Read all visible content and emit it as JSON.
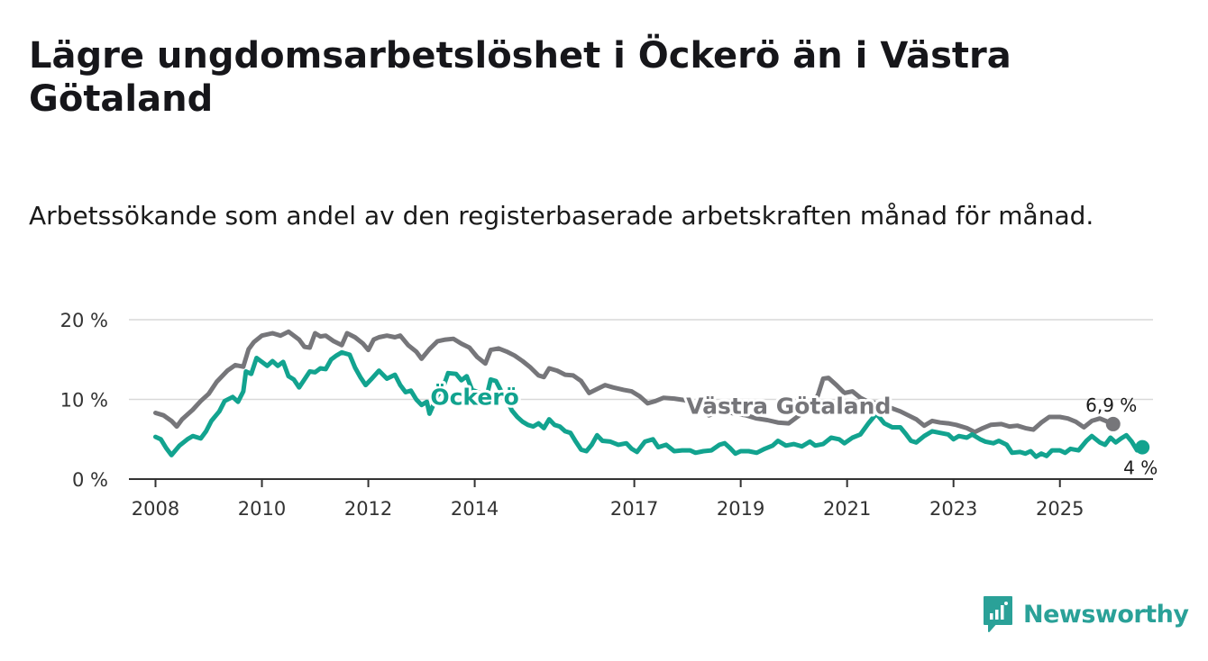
{
  "title": "Lägre ungdomsarbetslöshet i Öckerö än i Västra Götaland",
  "subtitle": "Arbetssökande som andel av den registerbaserade arbetskraften månad för månad.",
  "brand": "Newsworthy",
  "colors": {
    "ockero": "#12a38f",
    "vastra": "#76767a",
    "axis": "#333333",
    "grid": "#d9d9d9"
  },
  "chart_data": {
    "type": "line",
    "x_unit": "year (decimal)",
    "xlim": [
      2007.5,
      2026.75
    ],
    "ylim": [
      0,
      20
    ],
    "yticks": [
      0,
      10,
      20
    ],
    "ytick_labels": [
      "0 %",
      "10 %",
      "20 %"
    ],
    "xticks": [
      2008,
      2010,
      2012,
      2014,
      2017,
      2019,
      2021,
      2023,
      2025
    ],
    "xtick_labels": [
      "2008",
      "2010",
      "2012",
      "2014",
      "2017",
      "2019",
      "2021",
      "2023",
      "2025"
    ],
    "grid": true,
    "series": [
      {
        "name": "Västra Götaland",
        "color": "#76767a",
        "end_label": "6,9 %",
        "points": [
          [
            2008,
            8.3
          ],
          [
            2008.15,
            8
          ],
          [
            2008.3,
            7.3
          ],
          [
            2008.4,
            6.6
          ],
          [
            2008.5,
            7.5
          ],
          [
            2008.7,
            8.7
          ],
          [
            2008.85,
            9.8
          ],
          [
            2009,
            10.7
          ],
          [
            2009.15,
            12.2
          ],
          [
            2009.35,
            13.6
          ],
          [
            2009.5,
            14.3
          ],
          [
            2009.65,
            14.1
          ],
          [
            2009.75,
            16.3
          ],
          [
            2009.85,
            17.2
          ],
          [
            2010,
            18
          ],
          [
            2010.2,
            18.3
          ],
          [
            2010.35,
            18
          ],
          [
            2010.5,
            18.5
          ],
          [
            2010.7,
            17.5
          ],
          [
            2010.8,
            16.6
          ],
          [
            2010.9,
            16.5
          ],
          [
            2011,
            18.3
          ],
          [
            2011.1,
            17.9
          ],
          [
            2011.2,
            18
          ],
          [
            2011.35,
            17.3
          ],
          [
            2011.5,
            16.8
          ],
          [
            2011.6,
            18.3
          ],
          [
            2011.75,
            17.8
          ],
          [
            2011.9,
            17
          ],
          [
            2012,
            16.2
          ],
          [
            2012.1,
            17.5
          ],
          [
            2012.2,
            17.8
          ],
          [
            2012.35,
            18
          ],
          [
            2012.5,
            17.8
          ],
          [
            2012.6,
            18
          ],
          [
            2012.75,
            16.8
          ],
          [
            2012.9,
            16
          ],
          [
            2013,
            15.1
          ],
          [
            2013.15,
            16.3
          ],
          [
            2013.3,
            17.3
          ],
          [
            2013.45,
            17.5
          ],
          [
            2013.6,
            17.6
          ],
          [
            2013.75,
            17
          ],
          [
            2013.9,
            16.5
          ],
          [
            2014.05,
            15.3
          ],
          [
            2014.2,
            14.5
          ],
          [
            2014.3,
            16.2
          ],
          [
            2014.45,
            16.4
          ],
          [
            2014.6,
            16
          ],
          [
            2014.75,
            15.5
          ],
          [
            2014.9,
            14.8
          ],
          [
            2015.05,
            14
          ],
          [
            2015.2,
            13
          ],
          [
            2015.3,
            12.8
          ],
          [
            2015.4,
            13.9
          ],
          [
            2015.55,
            13.6
          ],
          [
            2015.7,
            13.1
          ],
          [
            2015.85,
            13
          ],
          [
            2016,
            12.3
          ],
          [
            2016.15,
            10.8
          ],
          [
            2016.3,
            11.3
          ],
          [
            2016.45,
            11.8
          ],
          [
            2016.6,
            11.5
          ],
          [
            2016.8,
            11.2
          ],
          [
            2016.95,
            11
          ],
          [
            2017.1,
            10.4
          ],
          [
            2017.25,
            9.5
          ],
          [
            2017.4,
            9.8
          ],
          [
            2017.55,
            10.2
          ],
          [
            2017.75,
            10.1
          ],
          [
            2017.95,
            9.9
          ],
          [
            2018.1,
            9.5
          ],
          [
            2018.25,
            8.8
          ],
          [
            2018.4,
            8
          ],
          [
            2018.55,
            8.3
          ],
          [
            2018.7,
            8.5
          ],
          [
            2018.9,
            8.2
          ],
          [
            2019.1,
            8
          ],
          [
            2019.3,
            7.6
          ],
          [
            2019.5,
            7.4
          ],
          [
            2019.7,
            7.1
          ],
          [
            2019.9,
            7
          ],
          [
            2020.1,
            8
          ],
          [
            2020.3,
            9.3
          ],
          [
            2020.45,
            10.5
          ],
          [
            2020.55,
            12.6
          ],
          [
            2020.65,
            12.7
          ],
          [
            2020.8,
            11.8
          ],
          [
            2020.95,
            10.8
          ],
          [
            2021.1,
            11
          ],
          [
            2021.25,
            10.2
          ],
          [
            2021.4,
            9.7
          ],
          [
            2021.6,
            9.5
          ],
          [
            2021.8,
            9
          ],
          [
            2022,
            8.5
          ],
          [
            2022.15,
            8
          ],
          [
            2022.3,
            7.5
          ],
          [
            2022.45,
            6.7
          ],
          [
            2022.6,
            7.3
          ],
          [
            2022.75,
            7.1
          ],
          [
            2022.9,
            7
          ],
          [
            2023.05,
            6.8
          ],
          [
            2023.25,
            6.4
          ],
          [
            2023.4,
            5.9
          ],
          [
            2023.55,
            6.4
          ],
          [
            2023.7,
            6.8
          ],
          [
            2023.9,
            6.9
          ],
          [
            2024.05,
            6.6
          ],
          [
            2024.2,
            6.7
          ],
          [
            2024.35,
            6.4
          ],
          [
            2024.5,
            6.2
          ],
          [
            2024.65,
            7.1
          ],
          [
            2024.8,
            7.8
          ],
          [
            2025,
            7.8
          ],
          [
            2025.15,
            7.6
          ],
          [
            2025.3,
            7.2
          ],
          [
            2025.45,
            6.5
          ],
          [
            2025.6,
            7.3
          ],
          [
            2025.75,
            7.6
          ],
          [
            2025.9,
            7.2
          ],
          [
            2026,
            6.9
          ]
        ]
      },
      {
        "name": "Öckerö",
        "color": "#12a38f",
        "end_label": "4 %",
        "points": [
          [
            2008,
            5.3
          ],
          [
            2008.1,
            5
          ],
          [
            2008.2,
            3.9
          ],
          [
            2008.3,
            3
          ],
          [
            2008.45,
            4.2
          ],
          [
            2008.6,
            5
          ],
          [
            2008.7,
            5.4
          ],
          [
            2008.85,
            5.1
          ],
          [
            2008.95,
            6
          ],
          [
            2009.05,
            7.3
          ],
          [
            2009.2,
            8.5
          ],
          [
            2009.3,
            9.8
          ],
          [
            2009.45,
            10.3
          ],
          [
            2009.55,
            9.7
          ],
          [
            2009.65,
            11
          ],
          [
            2009.7,
            13.5
          ],
          [
            2009.8,
            13.2
          ],
          [
            2009.9,
            15.2
          ],
          [
            2010,
            14.7
          ],
          [
            2010.1,
            14.2
          ],
          [
            2010.2,
            14.8
          ],
          [
            2010.3,
            14.2
          ],
          [
            2010.4,
            14.7
          ],
          [
            2010.5,
            12.9
          ],
          [
            2010.6,
            12.5
          ],
          [
            2010.7,
            11.5
          ],
          [
            2010.8,
            12.5
          ],
          [
            2010.9,
            13.5
          ],
          [
            2011,
            13.4
          ],
          [
            2011.1,
            13.9
          ],
          [
            2011.2,
            13.8
          ],
          [
            2011.3,
            15
          ],
          [
            2011.4,
            15.5
          ],
          [
            2011.5,
            15.9
          ],
          [
            2011.65,
            15.6
          ],
          [
            2011.75,
            14
          ],
          [
            2011.85,
            12.8
          ],
          [
            2011.95,
            11.8
          ],
          [
            2012.05,
            12.5
          ],
          [
            2012.2,
            13.6
          ],
          [
            2012.35,
            12.6
          ],
          [
            2012.5,
            13.1
          ],
          [
            2012.6,
            11.8
          ],
          [
            2012.7,
            10.9
          ],
          [
            2012.8,
            11.1
          ],
          [
            2012.9,
            10
          ],
          [
            2013,
            9.3
          ],
          [
            2013.1,
            9.7
          ],
          [
            2013.15,
            8.2
          ],
          [
            2013.3,
            10.5
          ],
          [
            2013.4,
            11.4
          ],
          [
            2013.5,
            13.3
          ],
          [
            2013.65,
            13.2
          ],
          [
            2013.75,
            12.4
          ],
          [
            2013.85,
            12.9
          ],
          [
            2013.95,
            11.2
          ],
          [
            2014.1,
            10.8
          ],
          [
            2014.2,
            9.7
          ],
          [
            2014.3,
            12.5
          ],
          [
            2014.4,
            12.3
          ],
          [
            2014.5,
            11
          ],
          [
            2014.6,
            10
          ],
          [
            2014.7,
            8.6
          ],
          [
            2014.8,
            7.8
          ],
          [
            2014.9,
            7.2
          ],
          [
            2015,
            6.8
          ],
          [
            2015.1,
            6.6
          ],
          [
            2015.2,
            7
          ],
          [
            2015.3,
            6.4
          ],
          [
            2015.4,
            7.5
          ],
          [
            2015.5,
            6.8
          ],
          [
            2015.6,
            6.6
          ],
          [
            2015.7,
            6
          ],
          [
            2015.8,
            5.8
          ],
          [
            2015.9,
            4.7
          ],
          [
            2016,
            3.7
          ],
          [
            2016.1,
            3.5
          ],
          [
            2016.2,
            4.3
          ],
          [
            2016.3,
            5.5
          ],
          [
            2016.4,
            4.8
          ],
          [
            2016.55,
            4.7
          ],
          [
            2016.7,
            4.3
          ],
          [
            2016.85,
            4.5
          ],
          [
            2016.95,
            3.8
          ],
          [
            2017.05,
            3.4
          ],
          [
            2017.2,
            4.7
          ],
          [
            2017.35,
            5
          ],
          [
            2017.45,
            4
          ],
          [
            2017.6,
            4.3
          ],
          [
            2017.75,
            3.5
          ],
          [
            2017.9,
            3.6
          ],
          [
            2018.05,
            3.6
          ],
          [
            2018.15,
            3.3
          ],
          [
            2018.3,
            3.5
          ],
          [
            2018.45,
            3.6
          ],
          [
            2018.6,
            4.3
          ],
          [
            2018.7,
            4.5
          ],
          [
            2018.8,
            3.9
          ],
          [
            2018.9,
            3.2
          ],
          [
            2019,
            3.5
          ],
          [
            2019.15,
            3.5
          ],
          [
            2019.3,
            3.3
          ],
          [
            2019.45,
            3.8
          ],
          [
            2019.6,
            4.2
          ],
          [
            2019.7,
            4.8
          ],
          [
            2019.85,
            4.2
          ],
          [
            2020,
            4.4
          ],
          [
            2020.15,
            4.1
          ],
          [
            2020.3,
            4.7
          ],
          [
            2020.4,
            4.2
          ],
          [
            2020.55,
            4.4
          ],
          [
            2020.7,
            5.2
          ],
          [
            2020.85,
            5
          ],
          [
            2020.95,
            4.5
          ],
          [
            2021.1,
            5.2
          ],
          [
            2021.25,
            5.6
          ],
          [
            2021.4,
            7
          ],
          [
            2021.55,
            8.2
          ],
          [
            2021.7,
            7
          ],
          [
            2021.85,
            6.5
          ],
          [
            2022,
            6.5
          ],
          [
            2022.1,
            5.7
          ],
          [
            2022.2,
            4.8
          ],
          [
            2022.3,
            4.6
          ],
          [
            2022.45,
            5.4
          ],
          [
            2022.6,
            6
          ],
          [
            2022.75,
            5.8
          ],
          [
            2022.9,
            5.6
          ],
          [
            2023,
            5
          ],
          [
            2023.1,
            5.4
          ],
          [
            2023.25,
            5.2
          ],
          [
            2023.35,
            5.6
          ],
          [
            2023.5,
            5
          ],
          [
            2023.6,
            4.7
          ],
          [
            2023.75,
            4.5
          ],
          [
            2023.85,
            4.8
          ],
          [
            2024,
            4.3
          ],
          [
            2024.1,
            3.3
          ],
          [
            2024.25,
            3.4
          ],
          [
            2024.35,
            3.2
          ],
          [
            2024.45,
            3.5
          ],
          [
            2024.55,
            2.8
          ],
          [
            2024.65,
            3.2
          ],
          [
            2024.75,
            2.9
          ],
          [
            2024.85,
            3.6
          ],
          [
            2025,
            3.6
          ],
          [
            2025.1,
            3.3
          ],
          [
            2025.2,
            3.8
          ],
          [
            2025.35,
            3.6
          ],
          [
            2025.5,
            4.8
          ],
          [
            2025.6,
            5.4
          ],
          [
            2025.75,
            4.6
          ],
          [
            2025.85,
            4.3
          ],
          [
            2025.95,
            5.2
          ],
          [
            2026.05,
            4.6
          ],
          [
            2026.15,
            5.1
          ],
          [
            2026.25,
            5.5
          ],
          [
            2026.35,
            4.7
          ],
          [
            2026.45,
            3.6
          ],
          [
            2026.55,
            4
          ]
        ]
      }
    ],
    "annotations": [
      {
        "text": "Öckerö",
        "series": "Öckerö",
        "x": 2014.0,
        "y": 9.3
      },
      {
        "text": "Västra Götaland",
        "series": "Västra Götaland",
        "x": 2019.9,
        "y": 8.2
      }
    ]
  }
}
